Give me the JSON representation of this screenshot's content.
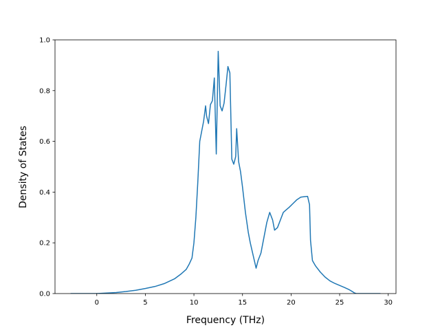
{
  "chart_data": {
    "type": "line",
    "title": "",
    "xlabel": "Frequency (THz)",
    "ylabel": "Density of States",
    "xlim": [
      -4.3,
      30.8
    ],
    "ylim": [
      0,
      1.0
    ],
    "xticks": [
      0,
      5,
      10,
      15,
      20,
      25,
      30
    ],
    "yticks": [
      0.0,
      0.2,
      0.4,
      0.6,
      0.8,
      1.0
    ],
    "xtick_labels": [
      "0",
      "5",
      "10",
      "15",
      "20",
      "25",
      "30"
    ],
    "ytick_labels": [
      "0.0",
      "0.2",
      "0.4",
      "0.6",
      "0.8",
      "1.0"
    ],
    "grid": false,
    "legend": "none",
    "series": [
      {
        "color": "#1f77b4",
        "x": [
          -2.7,
          0.0,
          1.0,
          2.0,
          3.0,
          4.0,
          5.0,
          6.0,
          7.0,
          8.0,
          8.7,
          9.2,
          9.5,
          9.8,
          10.0,
          10.2,
          10.4,
          10.6,
          10.8,
          11.0,
          11.2,
          11.3,
          11.5,
          11.7,
          11.9,
          12.1,
          12.3,
          12.5,
          12.7,
          12.9,
          13.1,
          13.3,
          13.5,
          13.7,
          13.9,
          14.1,
          14.3,
          14.4,
          14.6,
          14.8,
          15.0,
          15.3,
          15.6,
          15.8,
          16.1,
          16.4,
          16.6,
          16.9,
          17.2,
          17.5,
          17.8,
          18.1,
          18.3,
          18.6,
          18.9,
          19.2,
          19.5,
          19.8,
          20.2,
          20.6,
          21.0,
          21.4,
          21.7,
          21.9,
          22.0,
          22.2,
          22.5,
          23.0,
          23.5,
          24.0,
          24.5,
          25.0,
          25.5,
          26.0,
          26.3,
          26.5,
          26.7,
          29.2
        ],
        "y": [
          0.0,
          0.0,
          0.002,
          0.004,
          0.008,
          0.013,
          0.02,
          0.028,
          0.04,
          0.058,
          0.078,
          0.095,
          0.115,
          0.14,
          0.2,
          0.3,
          0.44,
          0.6,
          0.64,
          0.68,
          0.74,
          0.7,
          0.67,
          0.745,
          0.76,
          0.85,
          0.55,
          0.955,
          0.74,
          0.72,
          0.75,
          0.82,
          0.895,
          0.87,
          0.53,
          0.51,
          0.54,
          0.65,
          0.52,
          0.48,
          0.42,
          0.32,
          0.24,
          0.2,
          0.15,
          0.1,
          0.13,
          0.16,
          0.22,
          0.28,
          0.32,
          0.29,
          0.25,
          0.26,
          0.29,
          0.32,
          0.33,
          0.34,
          0.355,
          0.37,
          0.38,
          0.382,
          0.383,
          0.35,
          0.21,
          0.13,
          0.11,
          0.085,
          0.065,
          0.05,
          0.04,
          0.032,
          0.024,
          0.015,
          0.008,
          0.003,
          0.0,
          0.0
        ]
      }
    ]
  }
}
